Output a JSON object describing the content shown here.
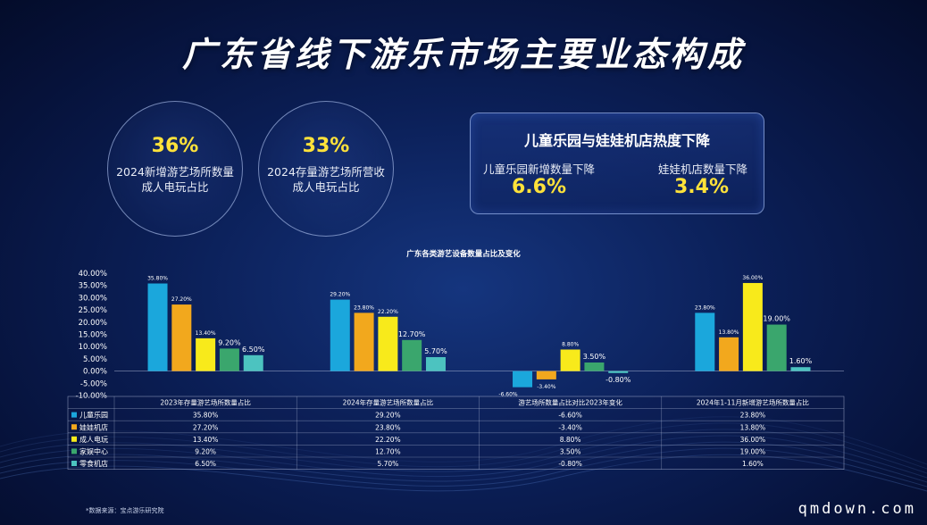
{
  "page": {
    "title": "广东省线下游乐市场主要业态构成",
    "stats": [
      {
        "value": "36%",
        "line1": "2024新增游艺场所数量",
        "line2": "成人电玩占比"
      },
      {
        "value": "33%",
        "line1": "2024存量游艺场所营收",
        "line2": "成人电玩占比"
      }
    ],
    "panel": {
      "title": "儿童乐园与娃娃机店热度下降",
      "left_label": "儿童乐园新增数量下降",
      "left_value": "6.6%",
      "right_label": "娃娃机店数量下降",
      "right_value": "3.4%"
    },
    "source": "*数据来源：宝点游乐研究院",
    "watermark": "qmdown.com"
  },
  "colors": {
    "儿童乐园": "#1ba7dc",
    "娃娃机店": "#f2a81d",
    "成人电玩": "#f8ea1b",
    "家娱中心": "#3aa66d",
    "零食机店": "#4cc3c0"
  },
  "chart_data": {
    "type": "bar",
    "title": "广东各类游艺设备数量占比及变化",
    "categories": [
      "2023年存量游艺场所数量占比",
      "2024年存量游艺场所数量占比",
      "游艺场所数量占比对比2023年变化",
      "2024年1-11月新增游艺场所数量占比"
    ],
    "series": [
      {
        "name": "儿童乐园",
        "values": [
          35.8,
          29.2,
          -6.6,
          23.8
        ]
      },
      {
        "name": "娃娃机店",
        "values": [
          27.2,
          23.8,
          -3.4,
          13.8
        ]
      },
      {
        "name": "成人电玩",
        "values": [
          13.4,
          22.2,
          8.8,
          36.0
        ]
      },
      {
        "name": "家娱中心",
        "values": [
          9.2,
          12.7,
          3.5,
          19.0
        ]
      },
      {
        "name": "零食机店",
        "values": [
          6.5,
          5.7,
          -0.8,
          1.6
        ]
      }
    ],
    "ylim": [
      -10,
      40
    ],
    "yticks": [
      "40.00%",
      "35.00%",
      "30.00%",
      "25.00%",
      "20.00%",
      "15.00%",
      "10.00%",
      "5.00%",
      "0.00%",
      "-5.00%",
      "-10.00%"
    ],
    "bar_labels": [
      [
        "35.80%",
        "29.20%",
        "-6.60%",
        "23.80%"
      ],
      [
        "27.20%",
        "23.80%",
        "-3.40%",
        "13.80%"
      ],
      [
        "13.40%",
        "22.20%",
        "8.80%",
        "36.00%"
      ],
      [
        "9.20%",
        "12.70%",
        "3.50%",
        "19.00%"
      ],
      [
        "6.50%",
        "5.70%",
        "-0.80%",
        "1.60%"
      ]
    ],
    "legend": "table-below"
  }
}
